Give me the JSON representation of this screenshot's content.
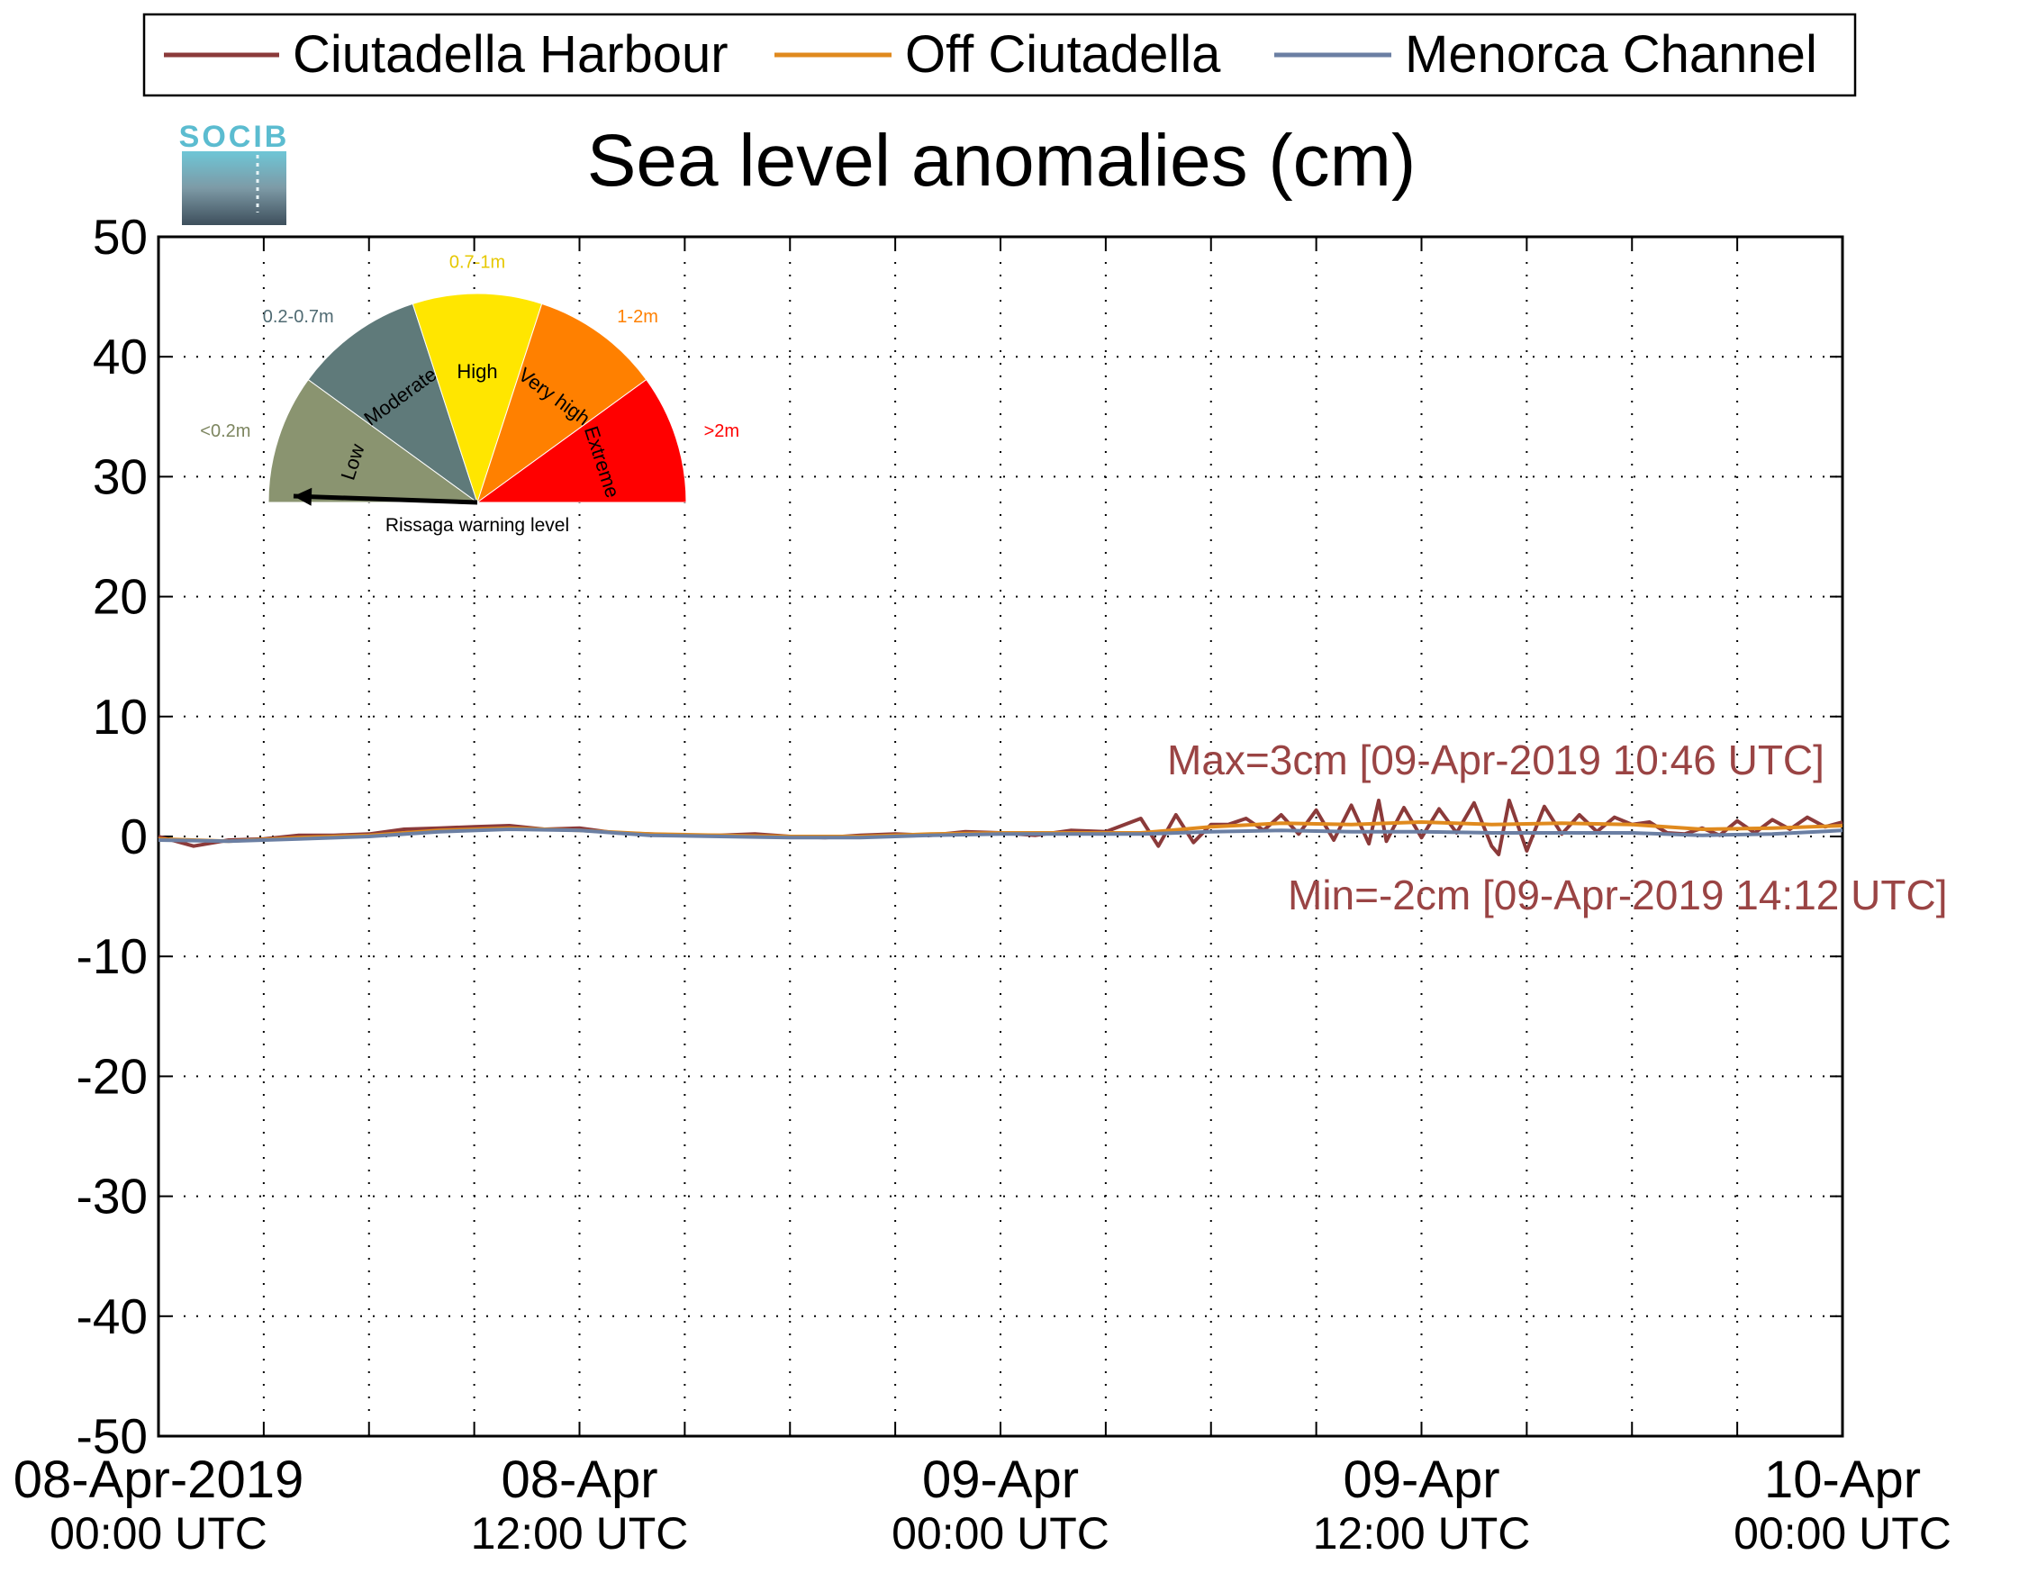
{
  "legend": {
    "items": [
      {
        "label": "Ciutadella Harbour",
        "color": "#8b3a3a"
      },
      {
        "label": "Off Ciutadella",
        "color": "#e08a1e"
      },
      {
        "label": "Menorca Channel",
        "color": "#6b7fa3"
      }
    ]
  },
  "logo": {
    "text": "SOCIB"
  },
  "gauge": {
    "title": "Rissaga warning level",
    "segments": [
      {
        "name": "Low",
        "range": "<0.2m",
        "color": "#8a9470",
        "range_color": "#7d8660"
      },
      {
        "name": "Moderate",
        "range": "0.2-0.7m",
        "color": "#5f7a7a",
        "range_color": "#4f6a72"
      },
      {
        "name": "High",
        "range": "0.7-1m",
        "color": "#ffe600",
        "range_color": "#e6c800"
      },
      {
        "name": "Very high",
        "range": "1-2m",
        "color": "#ff8000",
        "range_color": "#ff8000"
      },
      {
        "name": "Extreme",
        "range": ">2m",
        "color": "#ff0000",
        "range_color": "#ff0000"
      }
    ],
    "current_level": "Low"
  },
  "chart_data": {
    "type": "line",
    "title": "Sea level anomalies (cm)",
    "xlabel": "",
    "ylabel": "",
    "ylim": [
      -50,
      50
    ],
    "yticks": [
      50,
      40,
      30,
      20,
      10,
      0,
      -10,
      -20,
      -30,
      -40,
      -50
    ],
    "xlim_hours": [
      0,
      48
    ],
    "xtick_labels": [
      {
        "hour": 0,
        "date": "08-Apr-2019",
        "time": "00:00 UTC"
      },
      {
        "hour": 12,
        "date": "08-Apr",
        "time": "12:00 UTC"
      },
      {
        "hour": 24,
        "date": "09-Apr",
        "time": "00:00 UTC"
      },
      {
        "hour": 36,
        "date": "09-Apr",
        "time": "12:00 UTC"
      },
      {
        "hour": 48,
        "date": "10-Apr",
        "time": "00:00 UTC"
      }
    ],
    "minor_tick_hours": [
      3,
      6,
      9,
      15,
      18,
      21,
      27,
      30,
      33,
      39,
      42,
      45
    ],
    "grid": true,
    "series": [
      {
        "name": "Ciutadella Harbour",
        "color": "#8b3a3a",
        "x": [
          0,
          1,
          2,
          3,
          4,
          5,
          6,
          7,
          8,
          9,
          10,
          11,
          12,
          13,
          14,
          15,
          16,
          17,
          18,
          19,
          20,
          21,
          22,
          23,
          24,
          25,
          26,
          27,
          28,
          28.5,
          29,
          29.5,
          30,
          30.5,
          31,
          31.5,
          32,
          32.5,
          33,
          33.5,
          34,
          34.5,
          34.78,
          35,
          35.5,
          36,
          36.5,
          37,
          37.5,
          38,
          38.2,
          38.5,
          39,
          39.5,
          40,
          40.5,
          41,
          41.5,
          42,
          42.5,
          43,
          43.5,
          44,
          44.5,
          45,
          45.5,
          46,
          46.5,
          47,
          47.5,
          48
        ],
        "values": [
          0,
          -0.8,
          -0.3,
          -0.2,
          0.1,
          0.1,
          0.2,
          0.6,
          0.7,
          0.8,
          0.9,
          0.6,
          0.7,
          0.3,
          0.2,
          0.1,
          0.1,
          0.2,
          0.0,
          -0.1,
          0.1,
          0.2,
          0.1,
          0.4,
          0.3,
          0.1,
          0.5,
          0.4,
          1.5,
          -0.8,
          1.8,
          -0.5,
          1.0,
          1.0,
          1.5,
          0.5,
          1.8,
          0.2,
          2.2,
          -0.3,
          2.6,
          -0.6,
          3.0,
          -0.4,
          2.4,
          -0.1,
          2.3,
          0.3,
          2.8,
          -0.8,
          -1.5,
          3.0,
          -1.2,
          2.5,
          0.2,
          1.8,
          0.4,
          1.6,
          1.0,
          1.2,
          0.3,
          0.2,
          0.7,
          0.1,
          1.3,
          0.3,
          1.4,
          0.6,
          1.6,
          0.8,
          1.2
        ]
      },
      {
        "name": "Off Ciutadella",
        "color": "#e08a1e",
        "x": [
          0,
          2,
          4,
          6,
          8,
          10,
          12,
          14,
          16,
          18,
          20,
          22,
          24,
          26,
          28,
          30,
          32,
          34,
          36,
          38,
          40,
          42,
          44,
          46,
          48
        ],
        "values": [
          -0.2,
          -0.4,
          -0.1,
          0.1,
          0.5,
          0.7,
          0.5,
          0.2,
          0.1,
          0.0,
          0.0,
          0.2,
          0.3,
          0.3,
          0.3,
          0.8,
          1.1,
          1.0,
          1.2,
          1.0,
          1.1,
          1.0,
          0.6,
          0.7,
          0.9
        ]
      },
      {
        "name": "Menorca Channel",
        "color": "#6b7fa3",
        "x": [
          0,
          2,
          4,
          6,
          8,
          10,
          12,
          14,
          16,
          18,
          20,
          22,
          24,
          26,
          28,
          30,
          32,
          34,
          36,
          38,
          40,
          42,
          44,
          46,
          48
        ],
        "values": [
          -0.3,
          -0.4,
          -0.2,
          0.0,
          0.4,
          0.6,
          0.5,
          0.1,
          0.0,
          -0.1,
          -0.1,
          0.1,
          0.2,
          0.2,
          0.2,
          0.4,
          0.5,
          0.4,
          0.4,
          0.3,
          0.3,
          0.3,
          0.1,
          0.2,
          0.5
        ]
      }
    ],
    "annotations": [
      {
        "text": "Max=3cm [09-Apr-2019 10:46 UTC]",
        "color": "#9a4444"
      },
      {
        "text": "Min=-2cm [09-Apr-2019 14:12 UTC]",
        "color": "#9a4444"
      }
    ]
  }
}
